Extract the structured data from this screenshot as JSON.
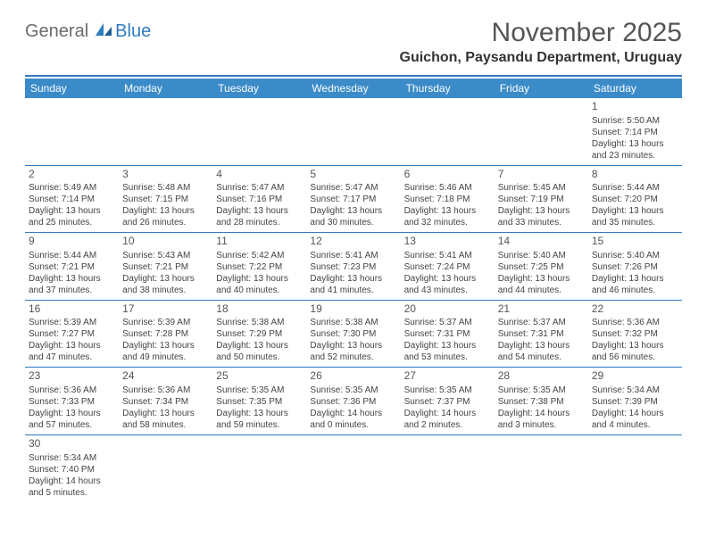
{
  "logo": {
    "text1": "General",
    "text2": "Blue"
  },
  "title": "November 2025",
  "location": "Guichon, Paysandu Department, Uruguay",
  "colors": {
    "header_bg": "#3b8bc9",
    "header_text": "#ffffff",
    "rule": "#2f7bbf",
    "logo_gray": "#6b6b6b",
    "logo_blue": "#2f7bbf",
    "title_color": "#555555",
    "cell_text": "#444444"
  },
  "day_headers": [
    "Sunday",
    "Monday",
    "Tuesday",
    "Wednesday",
    "Thursday",
    "Friday",
    "Saturday"
  ],
  "weeks": [
    [
      null,
      null,
      null,
      null,
      null,
      null,
      {
        "n": "1",
        "sr": "Sunrise: 5:50 AM",
        "ss": "Sunset: 7:14 PM",
        "d1": "Daylight: 13 hours",
        "d2": "and 23 minutes."
      }
    ],
    [
      {
        "n": "2",
        "sr": "Sunrise: 5:49 AM",
        "ss": "Sunset: 7:14 PM",
        "d1": "Daylight: 13 hours",
        "d2": "and 25 minutes."
      },
      {
        "n": "3",
        "sr": "Sunrise: 5:48 AM",
        "ss": "Sunset: 7:15 PM",
        "d1": "Daylight: 13 hours",
        "d2": "and 26 minutes."
      },
      {
        "n": "4",
        "sr": "Sunrise: 5:47 AM",
        "ss": "Sunset: 7:16 PM",
        "d1": "Daylight: 13 hours",
        "d2": "and 28 minutes."
      },
      {
        "n": "5",
        "sr": "Sunrise: 5:47 AM",
        "ss": "Sunset: 7:17 PM",
        "d1": "Daylight: 13 hours",
        "d2": "and 30 minutes."
      },
      {
        "n": "6",
        "sr": "Sunrise: 5:46 AM",
        "ss": "Sunset: 7:18 PM",
        "d1": "Daylight: 13 hours",
        "d2": "and 32 minutes."
      },
      {
        "n": "7",
        "sr": "Sunrise: 5:45 AM",
        "ss": "Sunset: 7:19 PM",
        "d1": "Daylight: 13 hours",
        "d2": "and 33 minutes."
      },
      {
        "n": "8",
        "sr": "Sunrise: 5:44 AM",
        "ss": "Sunset: 7:20 PM",
        "d1": "Daylight: 13 hours",
        "d2": "and 35 minutes."
      }
    ],
    [
      {
        "n": "9",
        "sr": "Sunrise: 5:44 AM",
        "ss": "Sunset: 7:21 PM",
        "d1": "Daylight: 13 hours",
        "d2": "and 37 minutes."
      },
      {
        "n": "10",
        "sr": "Sunrise: 5:43 AM",
        "ss": "Sunset: 7:21 PM",
        "d1": "Daylight: 13 hours",
        "d2": "and 38 minutes."
      },
      {
        "n": "11",
        "sr": "Sunrise: 5:42 AM",
        "ss": "Sunset: 7:22 PM",
        "d1": "Daylight: 13 hours",
        "d2": "and 40 minutes."
      },
      {
        "n": "12",
        "sr": "Sunrise: 5:41 AM",
        "ss": "Sunset: 7:23 PM",
        "d1": "Daylight: 13 hours",
        "d2": "and 41 minutes."
      },
      {
        "n": "13",
        "sr": "Sunrise: 5:41 AM",
        "ss": "Sunset: 7:24 PM",
        "d1": "Daylight: 13 hours",
        "d2": "and 43 minutes."
      },
      {
        "n": "14",
        "sr": "Sunrise: 5:40 AM",
        "ss": "Sunset: 7:25 PM",
        "d1": "Daylight: 13 hours",
        "d2": "and 44 minutes."
      },
      {
        "n": "15",
        "sr": "Sunrise: 5:40 AM",
        "ss": "Sunset: 7:26 PM",
        "d1": "Daylight: 13 hours",
        "d2": "and 46 minutes."
      }
    ],
    [
      {
        "n": "16",
        "sr": "Sunrise: 5:39 AM",
        "ss": "Sunset: 7:27 PM",
        "d1": "Daylight: 13 hours",
        "d2": "and 47 minutes."
      },
      {
        "n": "17",
        "sr": "Sunrise: 5:39 AM",
        "ss": "Sunset: 7:28 PM",
        "d1": "Daylight: 13 hours",
        "d2": "and 49 minutes."
      },
      {
        "n": "18",
        "sr": "Sunrise: 5:38 AM",
        "ss": "Sunset: 7:29 PM",
        "d1": "Daylight: 13 hours",
        "d2": "and 50 minutes."
      },
      {
        "n": "19",
        "sr": "Sunrise: 5:38 AM",
        "ss": "Sunset: 7:30 PM",
        "d1": "Daylight: 13 hours",
        "d2": "and 52 minutes."
      },
      {
        "n": "20",
        "sr": "Sunrise: 5:37 AM",
        "ss": "Sunset: 7:31 PM",
        "d1": "Daylight: 13 hours",
        "d2": "and 53 minutes."
      },
      {
        "n": "21",
        "sr": "Sunrise: 5:37 AM",
        "ss": "Sunset: 7:31 PM",
        "d1": "Daylight: 13 hours",
        "d2": "and 54 minutes."
      },
      {
        "n": "22",
        "sr": "Sunrise: 5:36 AM",
        "ss": "Sunset: 7:32 PM",
        "d1": "Daylight: 13 hours",
        "d2": "and 56 minutes."
      }
    ],
    [
      {
        "n": "23",
        "sr": "Sunrise: 5:36 AM",
        "ss": "Sunset: 7:33 PM",
        "d1": "Daylight: 13 hours",
        "d2": "and 57 minutes."
      },
      {
        "n": "24",
        "sr": "Sunrise: 5:36 AM",
        "ss": "Sunset: 7:34 PM",
        "d1": "Daylight: 13 hours",
        "d2": "and 58 minutes."
      },
      {
        "n": "25",
        "sr": "Sunrise: 5:35 AM",
        "ss": "Sunset: 7:35 PM",
        "d1": "Daylight: 13 hours",
        "d2": "and 59 minutes."
      },
      {
        "n": "26",
        "sr": "Sunrise: 5:35 AM",
        "ss": "Sunset: 7:36 PM",
        "d1": "Daylight: 14 hours",
        "d2": "and 0 minutes."
      },
      {
        "n": "27",
        "sr": "Sunrise: 5:35 AM",
        "ss": "Sunset: 7:37 PM",
        "d1": "Daylight: 14 hours",
        "d2": "and 2 minutes."
      },
      {
        "n": "28",
        "sr": "Sunrise: 5:35 AM",
        "ss": "Sunset: 7:38 PM",
        "d1": "Daylight: 14 hours",
        "d2": "and 3 minutes."
      },
      {
        "n": "29",
        "sr": "Sunrise: 5:34 AM",
        "ss": "Sunset: 7:39 PM",
        "d1": "Daylight: 14 hours",
        "d2": "and 4 minutes."
      }
    ],
    [
      {
        "n": "30",
        "sr": "Sunrise: 5:34 AM",
        "ss": "Sunset: 7:40 PM",
        "d1": "Daylight: 14 hours",
        "d2": "and 5 minutes."
      },
      null,
      null,
      null,
      null,
      null,
      null
    ]
  ]
}
